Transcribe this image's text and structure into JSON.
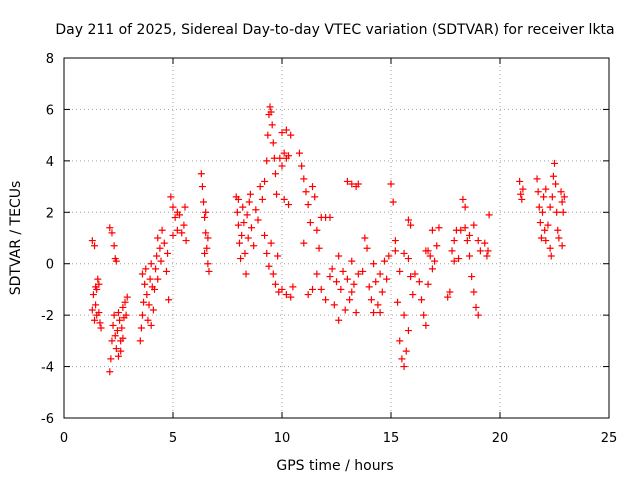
{
  "chart_data": {
    "type": "scatter",
    "title": "Day 211 of 2025, Sidereal Day-to-day VTEC variation (SDTVAR) for receiver lkta",
    "xlabel": "GPS time / hours",
    "ylabel": "SDTVAR / TECUs",
    "xlim": [
      0,
      25
    ],
    "ylim": [
      -6,
      8
    ],
    "xticks": [
      "0",
      "5",
      "10",
      "15",
      "20",
      "25"
    ],
    "yticks": [
      "-6",
      "-4",
      "-2",
      "0",
      "2",
      "4",
      "6",
      "8"
    ],
    "grid": true,
    "marker": "plus",
    "color": "#ff0000",
    "series": [
      {
        "name": "SDTVAR",
        "points": [
          [
            1.3,
            0.9
          ],
          [
            1.4,
            0.7
          ],
          [
            1.3,
            -1.8
          ],
          [
            1.35,
            -1.2
          ],
          [
            1.4,
            -2.2
          ],
          [
            1.45,
            -1.6
          ],
          [
            1.5,
            -1.0
          ],
          [
            1.55,
            -0.6
          ],
          [
            1.6,
            -1.9
          ],
          [
            1.65,
            -2.3
          ],
          [
            1.7,
            -2.5
          ],
          [
            1.6,
            -0.8
          ],
          [
            1.5,
            -2.0
          ],
          [
            1.45,
            -0.9
          ],
          [
            2.1,
            1.4
          ],
          [
            2.2,
            1.2
          ],
          [
            2.3,
            0.7
          ],
          [
            2.35,
            0.2
          ],
          [
            2.4,
            0.1
          ],
          [
            2.1,
            -4.2
          ],
          [
            2.15,
            -3.7
          ],
          [
            2.2,
            -3.0
          ],
          [
            2.25,
            -2.4
          ],
          [
            2.3,
            -2.0
          ],
          [
            2.35,
            -2.8
          ],
          [
            2.4,
            -3.3
          ],
          [
            2.45,
            -2.6
          ],
          [
            2.5,
            -1.9
          ],
          [
            2.55,
            -2.2
          ],
          [
            2.6,
            -3.0
          ],
          [
            2.65,
            -2.5
          ],
          [
            2.7,
            -1.7
          ],
          [
            2.75,
            -2.1
          ],
          [
            2.8,
            -1.5
          ],
          [
            2.85,
            -2.0
          ],
          [
            2.9,
            -1.3
          ],
          [
            2.5,
            -3.6
          ],
          [
            2.6,
            -3.4
          ],
          [
            2.7,
            -2.9
          ],
          [
            3.5,
            -3.0
          ],
          [
            3.55,
            -2.5
          ],
          [
            3.6,
            -2.0
          ],
          [
            3.65,
            -1.5
          ],
          [
            3.7,
            -0.8
          ],
          [
            3.75,
            -0.2
          ],
          [
            3.8,
            -1.2
          ],
          [
            3.85,
            -2.2
          ],
          [
            3.9,
            -1.6
          ],
          [
            3.95,
            -0.6
          ],
          [
            4.0,
            0.0
          ],
          [
            4.05,
            -0.9
          ],
          [
            4.1,
            -1.8
          ],
          [
            4.15,
            -1.0
          ],
          [
            4.2,
            -0.2
          ],
          [
            4.25,
            0.3
          ],
          [
            3.6,
            -0.4
          ],
          [
            4.3,
            -0.6
          ],
          [
            4.0,
            -2.4
          ],
          [
            4.3,
            1.0
          ],
          [
            4.4,
            0.6
          ],
          [
            4.5,
            1.3
          ],
          [
            4.6,
            0.8
          ],
          [
            4.7,
            -0.3
          ],
          [
            4.8,
            -1.4
          ],
          [
            4.75,
            0.4
          ],
          [
            4.45,
            0.1
          ],
          [
            4.9,
            2.6
          ],
          [
            5.0,
            2.2
          ],
          [
            5.1,
            1.8
          ],
          [
            5.2,
            1.3
          ],
          [
            5.3,
            1.9
          ],
          [
            5.4,
            1.2
          ],
          [
            5.5,
            1.5
          ],
          [
            5.6,
            0.9
          ],
          [
            5.0,
            1.1
          ],
          [
            5.2,
            2.0
          ],
          [
            5.55,
            2.2
          ],
          [
            6.3,
            3.5
          ],
          [
            6.35,
            3.0
          ],
          [
            6.4,
            2.4
          ],
          [
            6.45,
            1.8
          ],
          [
            6.5,
            1.2
          ],
          [
            6.55,
            0.6
          ],
          [
            6.6,
            0.0
          ],
          [
            6.65,
            -0.3
          ],
          [
            6.5,
            2.0
          ],
          [
            6.6,
            1.0
          ],
          [
            6.45,
            0.4
          ],
          [
            7.9,
            2.6
          ],
          [
            7.95,
            2.0
          ],
          [
            8.0,
            1.5
          ],
          [
            8.05,
            0.8
          ],
          [
            8.1,
            0.2
          ],
          [
            8.15,
            1.1
          ],
          [
            8.2,
            2.2
          ],
          [
            8.25,
            1.6
          ],
          [
            8.3,
            0.4
          ],
          [
            8.35,
            -0.4
          ],
          [
            8.4,
            1.9
          ],
          [
            8.5,
            2.4
          ],
          [
            8.6,
            1.4
          ],
          [
            8.7,
            0.7
          ],
          [
            8.8,
            2.1
          ],
          [
            8.9,
            1.7
          ],
          [
            8.0,
            2.5
          ],
          [
            8.45,
            1.0
          ],
          [
            8.55,
            2.7
          ],
          [
            9.0,
            3.0
          ],
          [
            9.1,
            2.5
          ],
          [
            9.2,
            3.2
          ],
          [
            9.3,
            4.0
          ],
          [
            9.35,
            5.0
          ],
          [
            9.4,
            5.8
          ],
          [
            9.45,
            6.1
          ],
          [
            9.5,
            5.9
          ],
          [
            9.55,
            5.4
          ],
          [
            9.6,
            4.7
          ],
          [
            9.65,
            4.1
          ],
          [
            9.7,
            3.5
          ],
          [
            9.75,
            2.7
          ],
          [
            9.2,
            1.1
          ],
          [
            9.3,
            0.4
          ],
          [
            9.4,
            -0.1
          ],
          [
            9.5,
            0.8
          ],
          [
            9.6,
            -0.4
          ],
          [
            9.7,
            -0.8
          ],
          [
            9.8,
            0.3
          ],
          [
            9.85,
            -1.1
          ],
          [
            9.9,
            4.1
          ],
          [
            10.0,
            3.8
          ],
          [
            10.1,
            4.3
          ],
          [
            10.2,
            4.1
          ],
          [
            10.3,
            4.2
          ],
          [
            10.0,
            5.1
          ],
          [
            10.2,
            5.2
          ],
          [
            10.4,
            5.0
          ],
          [
            10.1,
            2.5
          ],
          [
            10.3,
            2.3
          ],
          [
            10.0,
            -1.0
          ],
          [
            10.2,
            -1.2
          ],
          [
            10.4,
            -1.3
          ],
          [
            10.5,
            -0.9
          ],
          [
            10.8,
            4.3
          ],
          [
            10.9,
            3.8
          ],
          [
            11.0,
            3.3
          ],
          [
            11.1,
            2.8
          ],
          [
            11.2,
            2.3
          ],
          [
            11.3,
            1.6
          ],
          [
            11.4,
            3.0
          ],
          [
            11.5,
            2.6
          ],
          [
            11.6,
            1.3
          ],
          [
            11.7,
            0.6
          ],
          [
            11.8,
            1.8
          ],
          [
            12.0,
            1.8
          ],
          [
            12.2,
            1.8
          ],
          [
            11.6,
            -0.4
          ],
          [
            11.8,
            -1.0
          ],
          [
            12.0,
            -1.4
          ],
          [
            11.2,
            -1.2
          ],
          [
            11.4,
            -1.0
          ],
          [
            11.0,
            0.8
          ],
          [
            12.2,
            -0.5
          ],
          [
            12.3,
            -0.2
          ],
          [
            12.4,
            -1.6
          ],
          [
            12.5,
            -0.7
          ],
          [
            12.6,
            -2.2
          ],
          [
            12.7,
            -1.0
          ],
          [
            12.8,
            -0.3
          ],
          [
            12.9,
            -1.8
          ],
          [
            13.0,
            -0.6
          ],
          [
            13.1,
            -1.4
          ],
          [
            13.2,
            0.1
          ],
          [
            13.3,
            -0.8
          ],
          [
            13.4,
            -1.9
          ],
          [
            13.5,
            -0.4
          ],
          [
            12.6,
            0.3
          ],
          [
            13.2,
            -1.1
          ],
          [
            13.0,
            3.2
          ],
          [
            13.2,
            3.1
          ],
          [
            13.4,
            3.0
          ],
          [
            13.5,
            3.1
          ],
          [
            13.7,
            -0.3
          ],
          [
            13.8,
            1.0
          ],
          [
            13.9,
            0.6
          ],
          [
            14.0,
            -0.9
          ],
          [
            14.1,
            -1.4
          ],
          [
            14.2,
            -1.9
          ],
          [
            14.3,
            -0.7
          ],
          [
            14.4,
            -1.6
          ],
          [
            14.5,
            -0.4
          ],
          [
            14.6,
            -1.1
          ],
          [
            14.7,
            0.1
          ],
          [
            14.8,
            -0.6
          ],
          [
            14.9,
            0.3
          ],
          [
            14.5,
            -1.9
          ],
          [
            14.2,
            0.0
          ],
          [
            15.0,
            3.1
          ],
          [
            15.1,
            2.4
          ],
          [
            15.2,
            0.9
          ],
          [
            15.3,
            -1.5
          ],
          [
            15.4,
            -3.0
          ],
          [
            15.5,
            -3.7
          ],
          [
            15.6,
            -4.0
          ],
          [
            15.7,
            -3.4
          ],
          [
            15.8,
            -2.6
          ],
          [
            15.6,
            -2.0
          ],
          [
            15.4,
            -0.3
          ],
          [
            15.6,
            0.4
          ],
          [
            15.8,
            0.2
          ],
          [
            15.9,
            -0.5
          ],
          [
            16.0,
            -1.2
          ],
          [
            16.1,
            -0.4
          ],
          [
            15.8,
            1.7
          ],
          [
            15.9,
            1.5
          ],
          [
            15.2,
            0.5
          ],
          [
            16.3,
            -0.7
          ],
          [
            16.4,
            -1.4
          ],
          [
            16.5,
            -2.0
          ],
          [
            16.6,
            -2.4
          ],
          [
            16.7,
            -0.8
          ],
          [
            16.8,
            0.3
          ],
          [
            16.7,
            0.5
          ],
          [
            16.9,
            -0.2
          ],
          [
            17.0,
            0.1
          ],
          [
            17.1,
            0.7
          ],
          [
            16.9,
            1.3
          ],
          [
            17.2,
            1.4
          ],
          [
            16.6,
            0.5
          ],
          [
            17.6,
            -1.3
          ],
          [
            17.7,
            -1.1
          ],
          [
            17.8,
            0.5
          ],
          [
            17.9,
            0.9
          ],
          [
            18.0,
            1.3
          ],
          [
            18.1,
            0.2
          ],
          [
            18.2,
            1.3
          ],
          [
            18.3,
            2.5
          ],
          [
            18.4,
            2.2
          ],
          [
            18.5,
            0.9
          ],
          [
            18.6,
            0.3
          ],
          [
            18.7,
            -0.5
          ],
          [
            18.8,
            -1.1
          ],
          [
            18.9,
            -1.7
          ],
          [
            19.0,
            -2.0
          ],
          [
            18.6,
            1.1
          ],
          [
            18.8,
            1.5
          ],
          [
            19.0,
            0.9
          ],
          [
            19.1,
            0.5
          ],
          [
            18.4,
            1.4
          ],
          [
            17.9,
            0.1
          ],
          [
            19.3,
            0.8
          ],
          [
            19.4,
            0.3
          ],
          [
            19.5,
            1.9
          ],
          [
            19.45,
            0.5
          ],
          [
            20.9,
            3.2
          ],
          [
            20.95,
            2.7
          ],
          [
            21.0,
            2.5
          ],
          [
            21.05,
            2.9
          ],
          [
            21.7,
            3.3
          ],
          [
            21.75,
            2.8
          ],
          [
            21.8,
            2.2
          ],
          [
            21.85,
            1.6
          ],
          [
            21.9,
            1.0
          ],
          [
            21.95,
            2.0
          ],
          [
            22.0,
            2.6
          ],
          [
            22.05,
            1.3
          ],
          [
            22.1,
            0.9
          ],
          [
            22.2,
            1.5
          ],
          [
            22.3,
            0.6
          ],
          [
            22.35,
            0.3
          ],
          [
            22.4,
            2.6
          ],
          [
            22.45,
            3.4
          ],
          [
            22.5,
            3.9
          ],
          [
            22.55,
            3.1
          ],
          [
            22.6,
            2.0
          ],
          [
            22.65,
            1.3
          ],
          [
            22.7,
            1.0
          ],
          [
            22.3,
            2.2
          ],
          [
            22.1,
            2.9
          ],
          [
            22.8,
            2.8
          ],
          [
            22.85,
            2.4
          ],
          [
            22.9,
            2.0
          ],
          [
            22.95,
            2.6
          ],
          [
            22.85,
            0.7
          ]
        ]
      }
    ]
  }
}
